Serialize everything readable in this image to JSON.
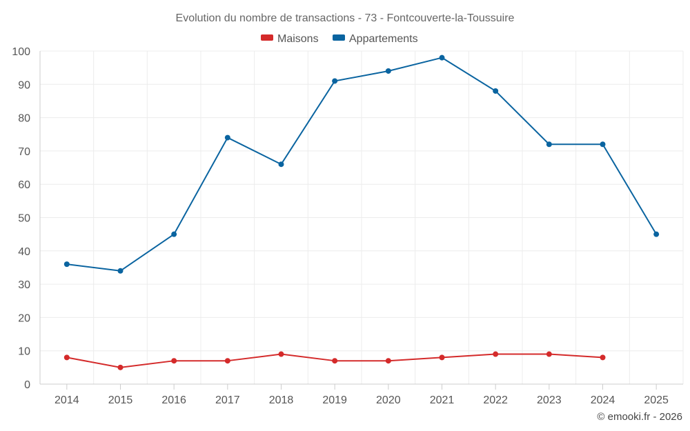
{
  "chart_data": {
    "type": "line",
    "title": "Evolution du nombre de transactions - 73 - Fontcouverte-la-Toussuire",
    "categories": [
      "2014",
      "2015",
      "2016",
      "2017",
      "2018",
      "2019",
      "2020",
      "2021",
      "2022",
      "2023",
      "2024",
      "2025"
    ],
    "ylim": [
      0,
      100
    ],
    "yticks": [
      "0",
      "10",
      "20",
      "30",
      "40",
      "50",
      "60",
      "70",
      "80",
      "90",
      "100"
    ],
    "legend_position": "top-center",
    "grid": true,
    "series": [
      {
        "name": "Maisons",
        "color": "#d42a2a",
        "values": [
          8,
          5,
          7,
          7,
          9,
          7,
          7,
          8,
          9,
          9,
          8,
          null
        ]
      },
      {
        "name": "Appartements",
        "color": "#0a64a0",
        "values": [
          36,
          34,
          45,
          74,
          66,
          91,
          94,
          98,
          88,
          72,
          72,
          45
        ]
      }
    ]
  },
  "credit": "© emooki.fr - 2026"
}
